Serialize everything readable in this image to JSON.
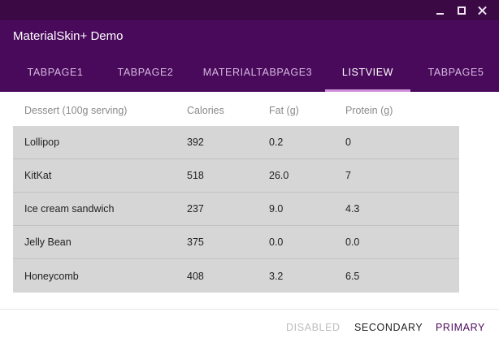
{
  "window": {
    "title": "MaterialSkin+ Demo",
    "controls": [
      "minimize",
      "maximize",
      "close"
    ]
  },
  "tabs": [
    {
      "label": "TABPAGE1",
      "active": false
    },
    {
      "label": "TABPAGE2",
      "active": false
    },
    {
      "label": "MATERIALTABPAGE3",
      "active": false
    },
    {
      "label": "LISTVIEW",
      "active": true
    },
    {
      "label": "TABPAGE5",
      "active": false
    }
  ],
  "listview": {
    "columns": [
      "Dessert (100g serving)",
      "Calories",
      "Fat (g)",
      "Protein (g)"
    ],
    "rows": [
      [
        "Lollipop",
        "392",
        "0.2",
        "0"
      ],
      [
        "KitKat",
        "518",
        "26.0",
        "7"
      ],
      [
        "Ice cream sandwich",
        "237",
        "9.0",
        "4.3"
      ],
      [
        "Jelly Bean",
        "375",
        "0.0",
        "0.0"
      ],
      [
        "Honeycomb",
        "408",
        "3.2",
        "6.5"
      ]
    ]
  },
  "buttons": {
    "disabled": "DISABLED",
    "secondary": "SECONDARY",
    "primary": "PRIMARY"
  },
  "colors": {
    "titlebar": "#3b0a45",
    "primary": "#4a0a5c",
    "accent_indicator": "#ce93d8",
    "row_background": "#d6d6d6"
  }
}
